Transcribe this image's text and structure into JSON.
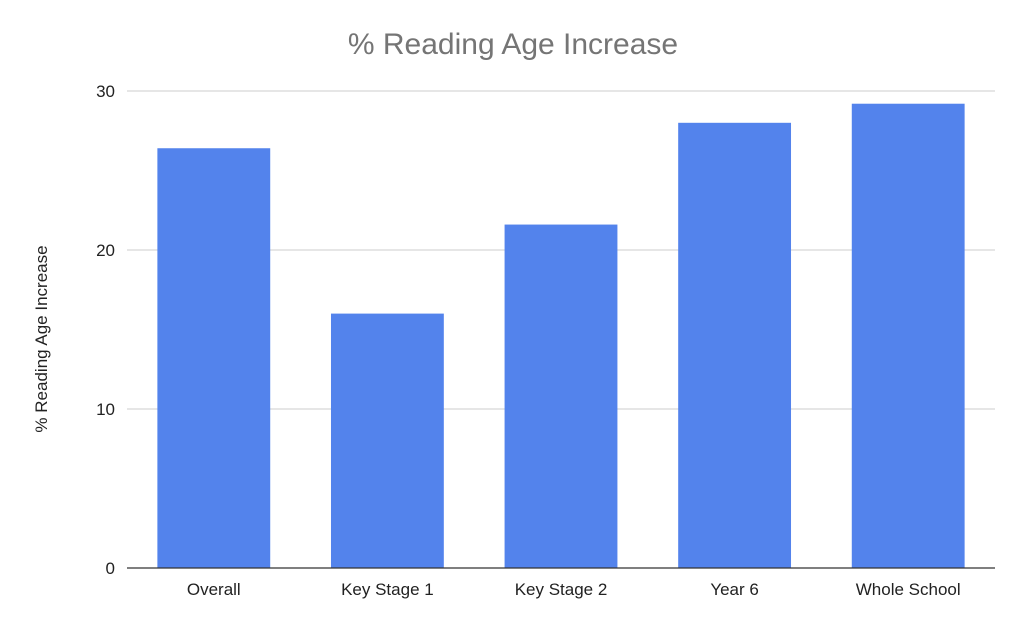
{
  "chart_data": {
    "type": "bar",
    "title": "% Reading Age Increase",
    "xlabel": "",
    "ylabel": "% Reading Age Increase",
    "categories": [
      "Overall",
      "Key Stage 1",
      "Key Stage 2",
      "Year 6",
      "Whole School"
    ],
    "values": [
      26.4,
      16.0,
      21.6,
      28.0,
      29.2
    ],
    "ylim": [
      0,
      30
    ],
    "yticks": [
      0,
      10,
      20,
      30
    ],
    "grid": true,
    "legend": "none",
    "bar_color": "#5383EC"
  }
}
